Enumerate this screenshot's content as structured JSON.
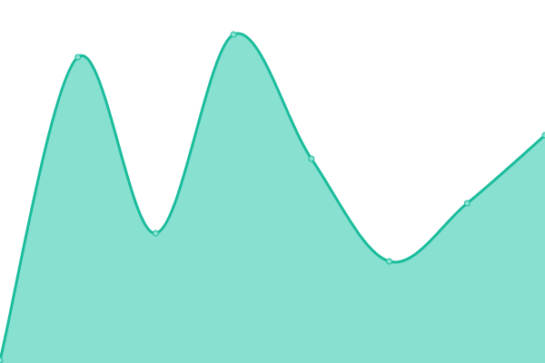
{
  "chart_data": {
    "type": "area",
    "title": "",
    "xlabel": "",
    "ylabel": "",
    "x": [
      0,
      1,
      2,
      3,
      4,
      5,
      6,
      7
    ],
    "values": [
      3,
      337,
      143,
      362,
      225,
      112,
      176,
      251
    ],
    "ylim": [
      0,
      400
    ],
    "grid": false,
    "axes_visible": false,
    "smooth": true,
    "colors": {
      "line": "#1abc9c",
      "fill": "#88e0d0",
      "point_fill": "#88e0d0"
    }
  }
}
